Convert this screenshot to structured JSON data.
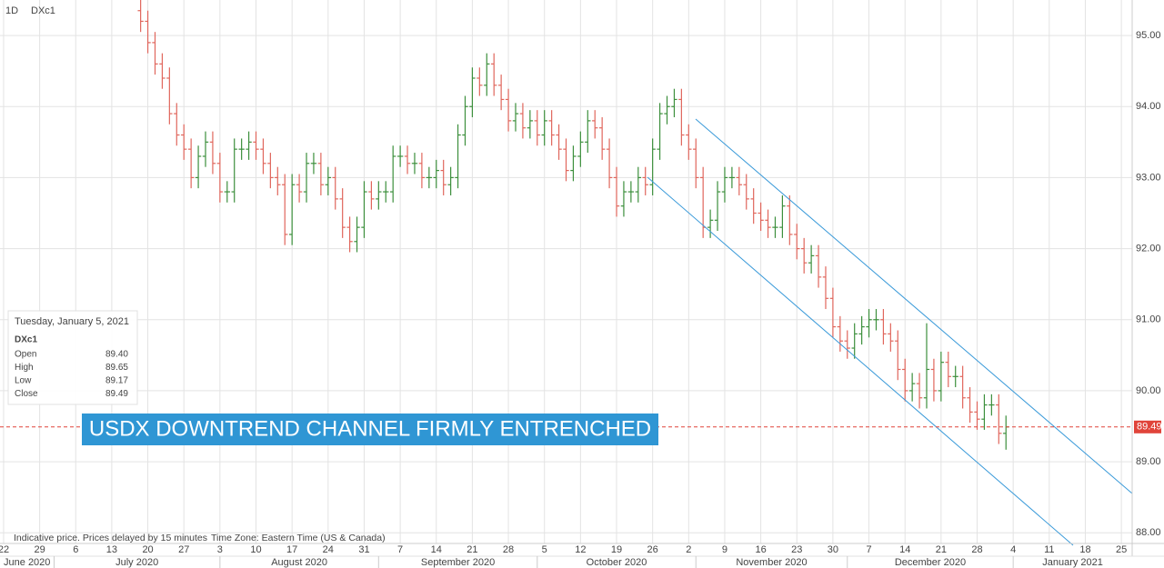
{
  "chart_data": {
    "type": "ohlc",
    "interval": "1D",
    "symbol": "DXc1",
    "open": [
      95.35,
      95.2,
      94.9,
      94.6,
      94.4,
      93.9,
      93.6,
      93.4,
      93.0,
      93.3,
      93.5,
      93.2,
      92.8,
      92.8,
      93.4,
      93.4,
      93.5,
      93.4,
      93.2,
      93.0,
      92.9,
      92.2,
      92.9,
      92.8,
      93.2,
      93.2,
      92.9,
      93.0,
      92.7,
      92.3,
      92.1,
      92.3,
      92.8,
      92.7,
      92.8,
      92.8,
      93.3,
      93.3,
      93.2,
      93.2,
      93.0,
      93.0,
      93.1,
      92.9,
      93.0,
      93.6,
      94.0,
      94.4,
      94.3,
      94.6,
      94.3,
      94.1,
      93.8,
      93.9,
      93.7,
      93.8,
      93.6,
      93.8,
      93.6,
      93.4,
      93.1,
      93.3,
      93.5,
      93.8,
      93.7,
      93.4,
      93.0,
      92.6,
      92.8,
      92.8,
      93.0,
      92.9,
      93.4,
      93.9,
      94.0,
      94.1,
      93.6,
      93.4,
      93.0,
      92.3,
      92.4,
      92.8,
      93.0,
      93.0,
      92.9,
      92.7,
      92.5,
      92.4,
      92.3,
      92.3,
      92.6,
      92.2,
      92.0,
      91.8,
      91.9,
      91.6,
      91.3,
      90.9,
      90.7,
      90.6,
      90.8,
      90.9,
      91.0,
      91.0,
      90.8,
      90.7,
      90.3,
      90.0,
      90.1,
      89.9,
      90.3,
      90.0,
      90.4,
      90.2,
      90.2,
      89.9,
      89.7,
      89.6,
      89.8,
      89.8,
      89.4
    ],
    "high": [
      95.5,
      95.35,
      95.05,
      94.75,
      94.55,
      94.05,
      93.75,
      93.55,
      93.45,
      93.65,
      93.65,
      93.35,
      92.95,
      93.55,
      93.55,
      93.65,
      93.65,
      93.55,
      93.35,
      93.15,
      93.05,
      93.05,
      93.05,
      93.35,
      93.35,
      93.35,
      93.15,
      93.15,
      92.85,
      92.45,
      92.45,
      92.95,
      92.95,
      92.95,
      92.95,
      93.45,
      93.45,
      93.45,
      93.35,
      93.35,
      93.15,
      93.25,
      93.25,
      93.15,
      93.75,
      94.15,
      94.55,
      94.55,
      94.75,
      94.75,
      94.45,
      94.25,
      94.05,
      94.05,
      93.95,
      93.95,
      93.95,
      93.95,
      93.75,
      93.55,
      93.45,
      93.65,
      93.95,
      93.95,
      93.85,
      93.55,
      93.15,
      92.95,
      92.95,
      93.15,
      93.15,
      93.55,
      94.05,
      94.15,
      94.25,
      94.25,
      93.75,
      93.55,
      93.15,
      92.55,
      92.95,
      93.15,
      93.15,
      93.15,
      93.05,
      92.85,
      92.65,
      92.55,
      92.45,
      92.75,
      92.75,
      92.35,
      92.15,
      92.05,
      92.05,
      91.75,
      91.45,
      91.05,
      90.85,
      90.95,
      91.05,
      91.15,
      91.15,
      91.15,
      90.95,
      90.85,
      90.45,
      90.25,
      90.25,
      90.95,
      90.45,
      90.55,
      90.55,
      90.35,
      90.35,
      90.05,
      89.85,
      89.95,
      89.95,
      89.95,
      89.65
    ],
    "low": [
      95.05,
      94.75,
      94.45,
      94.25,
      93.75,
      93.45,
      93.25,
      92.85,
      92.85,
      93.15,
      93.05,
      92.65,
      92.65,
      92.65,
      93.25,
      93.25,
      93.25,
      93.05,
      92.85,
      92.75,
      92.05,
      92.05,
      92.65,
      92.65,
      93.05,
      92.75,
      92.75,
      92.55,
      92.15,
      91.95,
      91.95,
      92.15,
      92.55,
      92.55,
      92.65,
      92.65,
      93.15,
      93.05,
      93.05,
      92.85,
      92.85,
      92.85,
      92.75,
      92.75,
      92.85,
      93.45,
      93.85,
      94.15,
      94.15,
      94.15,
      93.95,
      93.65,
      93.65,
      93.55,
      93.55,
      93.45,
      93.45,
      93.45,
      93.25,
      92.95,
      92.95,
      93.15,
      93.35,
      93.55,
      93.25,
      92.85,
      92.45,
      92.45,
      92.65,
      92.65,
      92.75,
      92.75,
      93.25,
      93.75,
      93.85,
      93.45,
      93.25,
      92.85,
      92.15,
      92.15,
      92.25,
      92.65,
      92.85,
      92.75,
      92.55,
      92.35,
      92.25,
      92.15,
      92.15,
      92.15,
      92.05,
      91.85,
      91.65,
      91.65,
      91.45,
      91.15,
      90.75,
      90.55,
      90.45,
      90.45,
      90.65,
      90.75,
      90.85,
      90.65,
      90.55,
      90.15,
      89.85,
      89.85,
      89.75,
      89.75,
      89.85,
      89.85,
      90.05,
      90.05,
      89.75,
      89.55,
      89.45,
      89.45,
      89.65,
      89.25,
      89.17
    ],
    "close": [
      95.2,
      94.9,
      94.6,
      94.4,
      93.9,
      93.6,
      93.4,
      93.0,
      93.3,
      93.5,
      93.2,
      92.8,
      92.8,
      93.4,
      93.4,
      93.5,
      93.4,
      93.2,
      93.0,
      92.9,
      92.2,
      92.9,
      92.8,
      93.2,
      93.2,
      92.9,
      93.0,
      92.7,
      92.3,
      92.1,
      92.3,
      92.8,
      92.7,
      92.8,
      92.8,
      93.3,
      93.3,
      93.2,
      93.2,
      93.0,
      93.0,
      93.1,
      92.9,
      93.0,
      93.6,
      94.0,
      94.4,
      94.3,
      94.6,
      94.3,
      94.1,
      93.8,
      93.9,
      93.7,
      93.8,
      93.6,
      93.8,
      93.6,
      93.4,
      93.1,
      93.3,
      93.5,
      93.8,
      93.7,
      93.4,
      93.0,
      92.6,
      92.8,
      92.8,
      93.0,
      92.9,
      93.4,
      93.9,
      94.0,
      94.1,
      93.6,
      93.4,
      93.0,
      92.3,
      92.4,
      92.8,
      93.0,
      93.0,
      92.9,
      92.7,
      92.5,
      92.4,
      92.3,
      92.3,
      92.6,
      92.2,
      92.0,
      91.8,
      91.9,
      91.6,
      91.3,
      90.9,
      90.7,
      90.6,
      90.8,
      90.9,
      91.0,
      91.0,
      90.8,
      90.7,
      90.3,
      90.0,
      90.1,
      89.9,
      90.3,
      90.0,
      90.4,
      90.2,
      90.2,
      89.9,
      89.7,
      89.6,
      89.8,
      89.8,
      89.4,
      89.49
    ],
    "up_color": "#3c8f3c",
    "down_color": "#e0665c",
    "xlim": [
      -19.5,
      137.5
    ],
    "xticks": [
      {
        "value": -19,
        "label": "22"
      },
      {
        "value": -14,
        "label": "29"
      },
      {
        "value": -9,
        "label": "6"
      },
      {
        "value": -4,
        "label": "13"
      },
      {
        "value": 1,
        "label": "20"
      },
      {
        "value": 6,
        "label": "27"
      },
      {
        "value": 11,
        "label": "3"
      },
      {
        "value": 16,
        "label": "10"
      },
      {
        "value": 21,
        "label": "17"
      },
      {
        "value": 26,
        "label": "24"
      },
      {
        "value": 31,
        "label": "31"
      },
      {
        "value": 36,
        "label": "7"
      },
      {
        "value": 41,
        "label": "14"
      },
      {
        "value": 46,
        "label": "21"
      },
      {
        "value": 51,
        "label": "28"
      },
      {
        "value": 56,
        "label": "5"
      },
      {
        "value": 61,
        "label": "12"
      },
      {
        "value": 66,
        "label": "19"
      },
      {
        "value": 71,
        "label": "26"
      },
      {
        "value": 76,
        "label": "2"
      },
      {
        "value": 81,
        "label": "9"
      },
      {
        "value": 86,
        "label": "16"
      },
      {
        "value": 91,
        "label": "23"
      },
      {
        "value": 96,
        "label": "30"
      },
      {
        "value": 101,
        "label": "7"
      },
      {
        "value": 106,
        "label": "14"
      },
      {
        "value": 111,
        "label": "21"
      },
      {
        "value": 116,
        "label": "28"
      },
      {
        "value": 121,
        "label": "4"
      },
      {
        "value": 126,
        "label": "11"
      },
      {
        "value": 131,
        "label": "18"
      },
      {
        "value": 136,
        "label": "25"
      }
    ],
    "month_starts": [
      -12,
      11,
      33,
      55,
      77,
      98,
      121
    ],
    "months": [
      "June 2020",
      "July 2020",
      "August 2020",
      "September 2020",
      "October 2020",
      "November 2020",
      "December 2020",
      "January 2021"
    ],
    "ylim": [
      87.85,
      95.5
    ],
    "yticks": [
      {
        "value": 88,
        "label": "88.00"
      },
      {
        "value": 89,
        "label": "89.00"
      },
      {
        "value": 90,
        "label": "90.00"
      },
      {
        "value": 91,
        "label": "91.00"
      },
      {
        "value": 92,
        "label": "92.00"
      },
      {
        "value": 93,
        "label": "93.00"
      },
      {
        "value": 94,
        "label": "94.00"
      },
      {
        "value": 95,
        "label": "95.00"
      }
    ],
    "grid": true,
    "last_price": {
      "value": 89.49,
      "label": "89.49"
    },
    "annotation": "USDX DOWNTREND CHANNEL FIRMLY ENTRENCHED",
    "footer": [
      "Indicative price. Prices delayed by 15 minutes",
      "Time Zone: Eastern Time (US & Canada)"
    ]
  },
  "info_box": {
    "date": "Tuesday, January 5, 2021",
    "symbol": "DXc1",
    "rows": [
      [
        "Open",
        "89.40"
      ],
      [
        "High",
        "89.65"
      ],
      [
        "Low",
        "89.17"
      ],
      [
        "Close",
        "89.49"
      ]
    ]
  }
}
